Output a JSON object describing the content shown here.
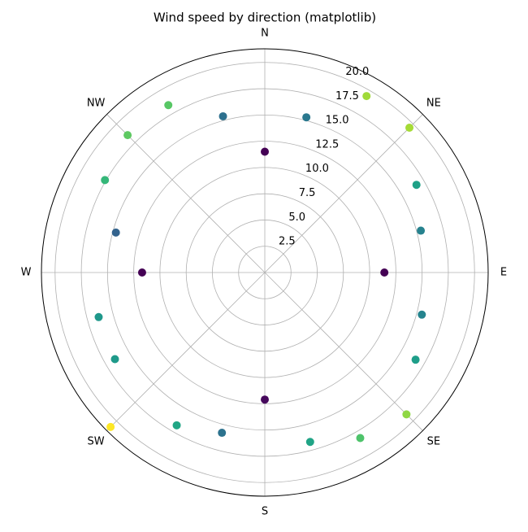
{
  "chart_data": {
    "type": "polar-scatter",
    "title": "Wind speed by direction (matplotlib)",
    "x": [
      0,
      15,
      30,
      45,
      60,
      75,
      90,
      105,
      120,
      135,
      150,
      165,
      180,
      195,
      210,
      225,
      240,
      255,
      270,
      285,
      300,
      315,
      330,
      345
    ],
    "values": [
      11.5,
      15.3,
      19.4,
      19.5,
      16.7,
      15.4,
      11.4,
      15.5,
      16.6,
      19.1,
      18.2,
      16.7,
      12.1,
      15.8,
      16.8,
      20.8,
      16.5,
      16.4,
      11.7,
      14.7,
      17.6,
      18.5,
      18.4,
      15.4
    ],
    "colors": [
      "#440154",
      "#2a788e",
      "#a0da39",
      "#a5db36",
      "#1fa187",
      "#26828e",
      "#440154",
      "#25848e",
      "#1f9e89",
      "#8fd744",
      "#4ec36b",
      "#20a486",
      "#46085c",
      "#2c728e",
      "#21a685",
      "#fde725",
      "#1f9a8a",
      "#1f988b",
      "#440154",
      "#33638d",
      "#35b779",
      "#5ec962",
      "#58c765",
      "#2d708e"
    ],
    "xlim": [
      0,
      360
    ],
    "xticks": [
      {
        "value": 0,
        "label": "N"
      },
      {
        "value": 45,
        "label": "NE"
      },
      {
        "value": 90,
        "label": "E"
      },
      {
        "value": 135,
        "label": "SE"
      },
      {
        "value": 180,
        "label": "S"
      },
      {
        "value": 225,
        "label": "SW"
      },
      {
        "value": 270,
        "label": "W"
      },
      {
        "value": 315,
        "label": "NW"
      }
    ],
    "ylim": [
      0,
      21.3
    ],
    "yticks": [
      2.5,
      {
        "value": 5,
        "label": "5.0"
      },
      7.5,
      {
        "value": 10,
        "label": "10.0"
      },
      12.5,
      {
        "value": 15,
        "label": "15.0"
      },
      17.5,
      {
        "value": 20,
        "label": "20.0"
      }
    ],
    "grid": true
  }
}
